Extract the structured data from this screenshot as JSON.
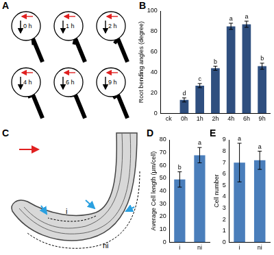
{
  "diagram": {
    "panel": "A",
    "time_labels": [
      "0 h",
      "1 h",
      "2 h",
      "4 h",
      "6 h",
      "9 h"
    ]
  },
  "image": {
    "panel": "C",
    "labels": [
      "i",
      "ni"
    ]
  },
  "chart_data": [
    {
      "panel": "B",
      "type": "bar",
      "y_label": "Root bending angles (degree)",
      "categories": [
        "ck",
        "0h",
        "1h",
        "2h",
        "4h",
        "6h",
        "9h"
      ],
      "values": [
        0,
        13,
        27,
        44,
        85,
        87,
        46
      ],
      "errors": [
        null,
        2,
        2,
        2,
        3,
        3,
        3
      ],
      "annotations": [
        null,
        "d",
        "c",
        "b",
        "a",
        "a",
        "b"
      ],
      "color": "#2f4f7f",
      "ylim": [
        0,
        100
      ],
      "yticks": [
        0,
        20,
        40,
        60,
        80,
        100
      ],
      "grid": false
    },
    {
      "panel": "D",
      "type": "bar",
      "y_label": "Average Cell length (μm/cell)",
      "categories": [
        "i",
        "ni"
      ],
      "values": [
        49,
        68
      ],
      "errors": [
        6,
        6
      ],
      "annotations": [
        "b",
        "a"
      ],
      "color": "#4a7ebb",
      "ylim": [
        0,
        80
      ],
      "yticks": [
        0,
        10,
        20,
        30,
        40,
        50,
        60,
        70,
        80
      ],
      "grid": false
    },
    {
      "panel": "E",
      "type": "bar",
      "y_label": "Cell number",
      "categories": [
        "i",
        "ni"
      ],
      "values": [
        7,
        7.2
      ],
      "errors": [
        1.7,
        0.8
      ],
      "annotations": [
        "a",
        "a"
      ],
      "color": "#4a7ebb",
      "ylim": [
        0,
        9
      ],
      "yticks": [
        0,
        1,
        2,
        3,
        4,
        5,
        6,
        7,
        8,
        9
      ],
      "grid": false
    }
  ]
}
